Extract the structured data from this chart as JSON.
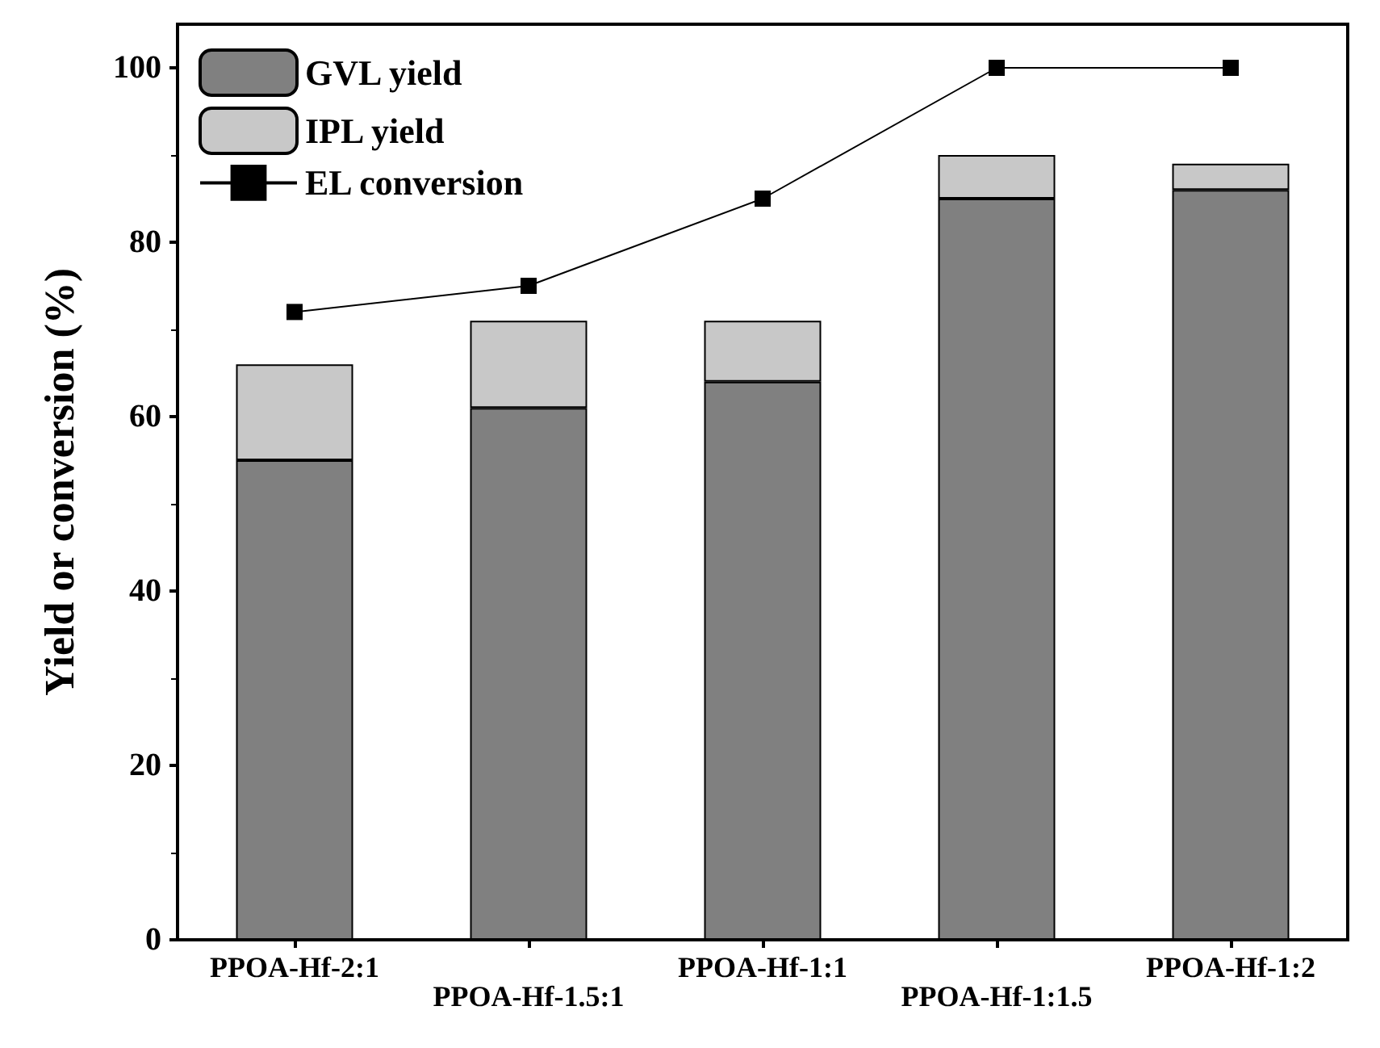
{
  "chart_data": {
    "type": "bar",
    "stacked": true,
    "ylabel": "Yield or conversion (%)",
    "categories": [
      "PPOA-Hf-2:1",
      "PPOA-Hf-1.5:1",
      "PPOA-Hf-1:1",
      "PPOA-Hf-1:1.5",
      "PPOA-Hf-1:2"
    ],
    "series": [
      {
        "name": "GVL yield",
        "color": "#808080",
        "values": [
          55,
          61,
          64,
          85,
          86
        ]
      },
      {
        "name": "IPL yield",
        "color": "#c8c8c8",
        "values": [
          11,
          10,
          7,
          5,
          3
        ]
      },
      {
        "name": "EL conversion",
        "type": "line",
        "color": "#000000",
        "marker": "square",
        "line_style": "solid",
        "values": [
          72,
          75,
          85,
          100,
          100
        ]
      }
    ],
    "ylim": [
      0,
      105
    ],
    "yticks": [
      0,
      20,
      40,
      60,
      80,
      100
    ],
    "grid": false,
    "legend": "top left"
  }
}
